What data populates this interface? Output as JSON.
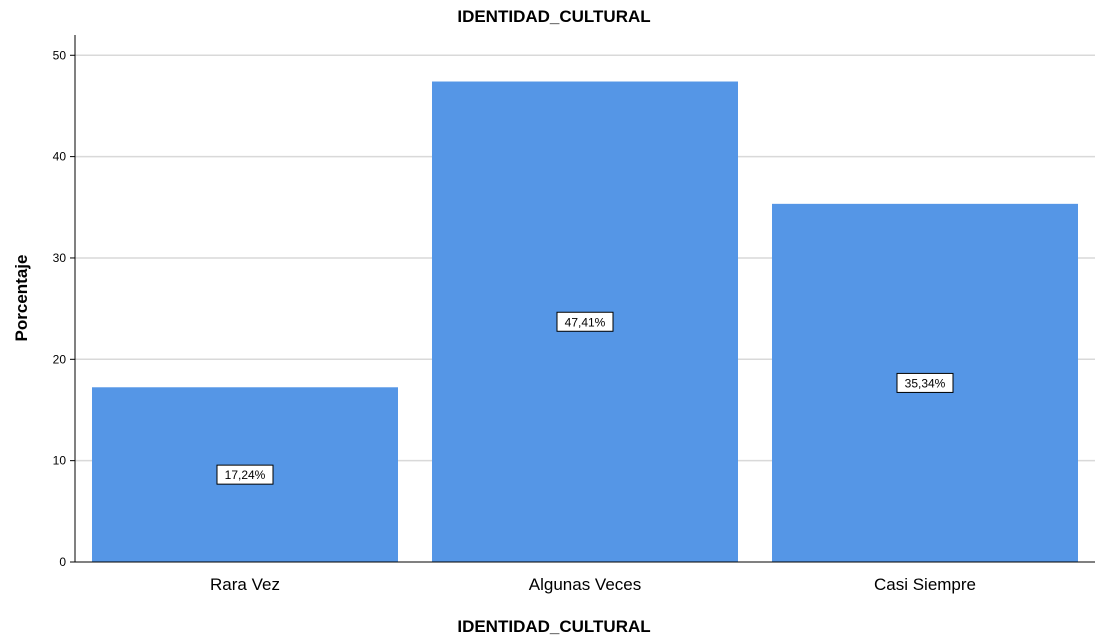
{
  "chart_data": {
    "type": "bar",
    "title": "IDENTIDAD_CULTURAL",
    "xlabel": "IDENTIDAD_CULTURAL",
    "ylabel": "Porcentaje",
    "categories": [
      "Rara Vez",
      "Algunas Veces",
      "Casi Siempre"
    ],
    "values": [
      17.24,
      47.41,
      35.34
    ],
    "data_labels": [
      "17,24%",
      "47,41%",
      "35,34%"
    ],
    "ylim": [
      0,
      52
    ],
    "yticks": [
      0,
      10,
      20,
      30,
      40,
      50
    ],
    "grid": true,
    "bar_color": "#5596E6",
    "grid_color": "#D9D9D9"
  }
}
